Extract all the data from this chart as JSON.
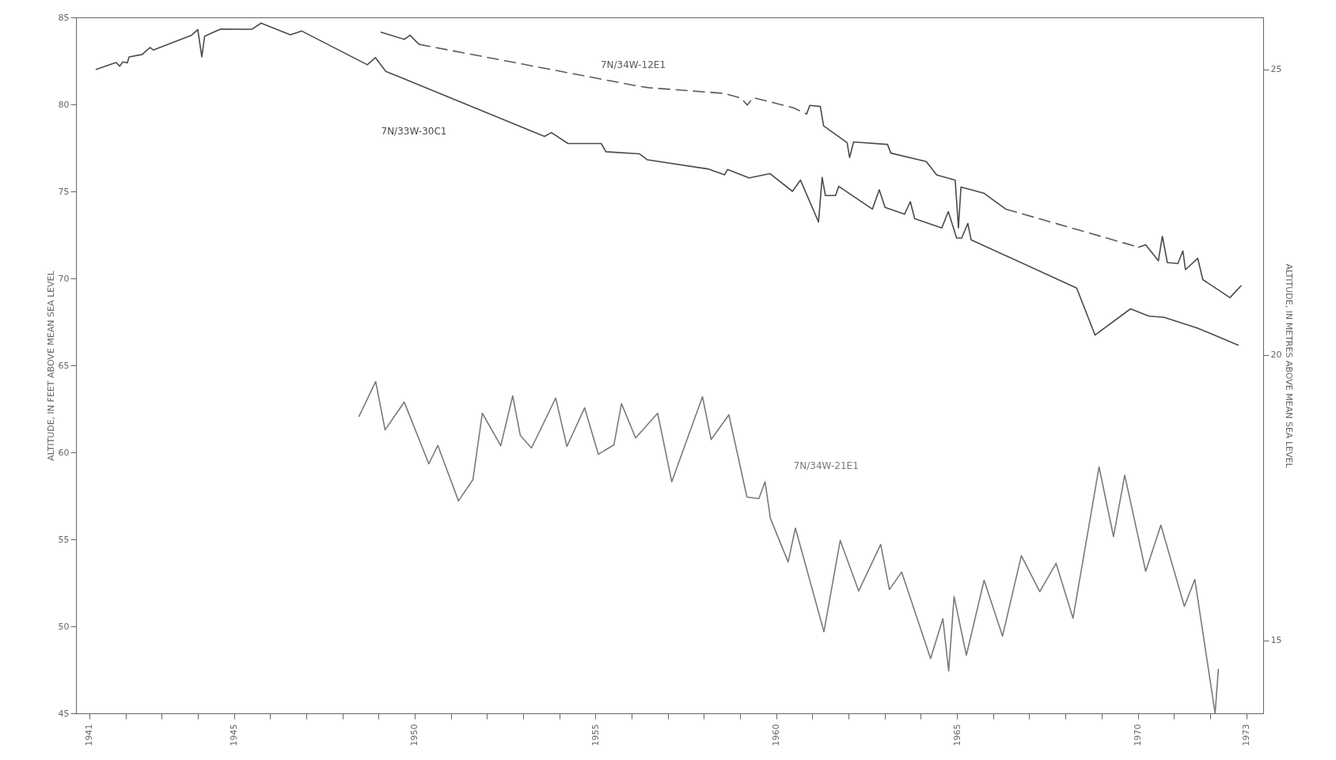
{
  "chart_data": {
    "type": "line",
    "ylabel": "ALTITUDE, IN FEET ABOVE MEAN SEA LEVEL",
    "y2label": "ALTITUDE, IN METRES ABOVE MEAN SEA LEVEL",
    "xlim": [
      1940.63,
      1973.47
    ],
    "xticks": [
      1941,
      {
        "value": 1942,
        "label": null
      },
      {
        "value": 1943,
        "label": null
      },
      {
        "value": 1944,
        "label": null
      },
      1945,
      {
        "value": 1946,
        "label": null
      },
      {
        "value": 1947,
        "label": null
      },
      {
        "value": 1948,
        "label": null
      },
      {
        "value": 1949,
        "label": null
      },
      1950,
      {
        "value": 1951,
        "label": null
      },
      {
        "value": 1952,
        "label": null
      },
      {
        "value": 1953,
        "label": null
      },
      {
        "value": 1954,
        "label": null
      },
      1955,
      {
        "value": 1956,
        "label": null
      },
      {
        "value": 1957,
        "label": null
      },
      {
        "value": 1958,
        "label": null
      },
      {
        "value": 1959,
        "label": null
      },
      1960,
      {
        "value": 1961,
        "label": null
      },
      {
        "value": 1962,
        "label": null
      },
      {
        "value": 1963,
        "label": null
      },
      {
        "value": 1964,
        "label": null
      },
      1965,
      {
        "value": 1966,
        "label": null
      },
      {
        "value": 1967,
        "label": null
      },
      {
        "value": 1968,
        "label": null
      },
      {
        "value": 1969,
        "label": null
      },
      1970,
      {
        "value": 1971,
        "label": null
      },
      {
        "value": 1972,
        "label": null
      },
      1973
    ],
    "ylim": [
      45,
      85
    ],
    "yticks": [
      45,
      50,
      55,
      60,
      65,
      70,
      75,
      80,
      85
    ],
    "y2lim": [
      13.72,
      25.91
    ],
    "y2ticks": [
      15,
      20,
      25
    ],
    "grid": false,
    "series": [
      {
        "name": "7N/33W-30C1",
        "color": "#4a4a4a",
        "line_style": "solid",
        "x": [
          1941.19,
          1941.74,
          1941.84,
          1941.93,
          1942.05,
          1942.1,
          1942.46,
          1942.68,
          1942.77,
          1943.83,
          1944.0,
          1944.11,
          1944.19,
          1944.63,
          1945.5,
          1945.75,
          1946.56,
          1946.87,
          1948.69,
          1948.91,
          1949.2,
          1953.59,
          1953.78,
          1954.24,
          1955.16,
          1955.29,
          1956.21,
          1956.43,
          1958.11,
          1958.57,
          1958.65,
          1959.25,
          1959.83,
          1960.45,
          1960.67,
          1961.17,
          1961.27,
          1961.36,
          1961.64,
          1961.73,
          1962.66,
          1962.85,
          1963.01,
          1963.55,
          1963.71,
          1963.83,
          1964.58,
          1964.76,
          1964.99,
          1965.13,
          1965.3,
          1965.39,
          1968.31,
          1968.82,
          1969.8,
          1970.31,
          1970.73,
          1971.66,
          1972.78
        ],
        "values": [
          82.01,
          82.41,
          82.2,
          82.44,
          82.39,
          82.73,
          82.87,
          83.27,
          83.13,
          83.98,
          84.3,
          82.73,
          83.92,
          84.33,
          84.32,
          84.67,
          84.0,
          84.22,
          82.28,
          82.69,
          81.9,
          78.16,
          78.38,
          77.75,
          77.75,
          77.28,
          77.16,
          76.82,
          76.29,
          75.95,
          76.26,
          75.77,
          76.02,
          75.0,
          75.65,
          73.24,
          75.8,
          74.76,
          74.76,
          75.29,
          73.98,
          75.09,
          74.08,
          73.69,
          74.41,
          73.43,
          72.9,
          73.84,
          72.32,
          72.32,
          73.16,
          72.22,
          69.44,
          66.74,
          68.25,
          67.83,
          67.76,
          67.14,
          66.16
        ]
      },
      {
        "color": "#4a4a4a",
        "line_style": "solid",
        "x": [
          1949.07,
          1949.71,
          1949.87,
          1950.12,
          null,
          1960.84,
          1960.93,
          1961.22,
          1961.31,
          1961.96,
          1962.03,
          1962.14,
          1963.08,
          1963.17,
          1964.15,
          1964.44,
          1964.95,
          1965.04,
          1965.11,
          1965.74,
          1966.35,
          null,
          1970.03,
          1970.22,
          1970.57,
          1970.68,
          1970.82,
          1971.11,
          1971.25,
          1971.32,
          1971.66,
          1971.8,
          1972.55,
          1972.86
        ],
        "values": [
          84.15,
          83.74,
          83.97,
          83.45,
          null,
          79.45,
          79.94,
          79.88,
          78.77,
          77.8,
          76.95,
          77.84,
          77.7,
          77.2,
          76.72,
          75.94,
          75.65,
          72.9,
          75.25,
          74.9,
          73.98,
          null,
          71.79,
          71.93,
          71.01,
          72.42,
          70.91,
          70.85,
          71.58,
          70.5,
          71.15,
          69.93,
          68.89,
          69.58
        ]
      },
      {
        "name": "7N/34W-12E1",
        "color": "#5a5a5a",
        "line_style": "dashed",
        "x": [
          1950.12,
          1956.13,
          1956.47,
          1958.57,
          1959.03,
          1959.2,
          1959.36,
          1960.47,
          1960.84,
          null,
          1966.35,
          1970.03
        ],
        "values": [
          83.45,
          81.07,
          80.96,
          80.63,
          80.36,
          79.96,
          80.39,
          79.81,
          79.45,
          null,
          73.98,
          71.79
        ]
      },
      {
        "name": "7N/34W-21E1",
        "color": "#7a7a7a",
        "line_style": "solid",
        "x": [
          1948.46,
          1948.92,
          1949.18,
          1949.71,
          1950.39,
          1950.64,
          1951.21,
          1951.61,
          1951.87,
          1952.38,
          1952.71,
          1952.92,
          1953.23,
          1953.9,
          1954.21,
          1954.7,
          1955.08,
          1955.51,
          1955.72,
          1956.11,
          1956.72,
          1957.11,
          1957.96,
          1958.2,
          1958.69,
          1959.19,
          1959.52,
          1959.69,
          1959.84,
          1960.33,
          1960.53,
          1961.32,
          1961.77,
          1962.28,
          1962.89,
          1963.13,
          1963.47,
          1964.27,
          1964.61,
          1964.77,
          1964.92,
          1965.26,
          1965.75,
          1966.26,
          1966.78,
          1967.29,
          1967.74,
          1968.21,
          1968.93,
          1969.33,
          1969.64,
          1970.22,
          1970.64,
          1971.29,
          1971.58,
          1972.14,
          1972.23
        ],
        "values": [
          62.07,
          64.07,
          61.29,
          62.89,
          59.34,
          60.4,
          57.21,
          58.43,
          62.25,
          60.38,
          63.25,
          60.98,
          60.25,
          63.12,
          60.34,
          62.56,
          59.89,
          60.43,
          62.8,
          60.83,
          62.25,
          58.31,
          63.2,
          60.74,
          62.16,
          57.43,
          57.34,
          58.31,
          56.2,
          53.7,
          55.65,
          49.69,
          54.94,
          52.03,
          54.71,
          52.12,
          53.12,
          48.15,
          50.44,
          47.44,
          51.71,
          48.34,
          52.65,
          49.44,
          54.06,
          51.99,
          53.62,
          50.47,
          59.16,
          55.16,
          58.69,
          53.16,
          55.82,
          51.15,
          52.69,
          45.0,
          47.53
        ]
      }
    ]
  }
}
